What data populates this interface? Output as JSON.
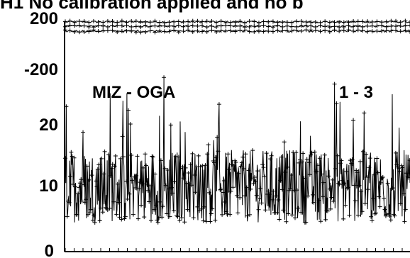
{
  "chart_data": [
    {
      "type": "scatter",
      "title": "H1  No calibration applied and no b",
      "xlabel": "",
      "ylabel": "",
      "ylim": [
        -200,
        200
      ],
      "y_ticks": [
        "200",
        "-200"
      ],
      "x_ticks_visible": false,
      "grid": false,
      "marker": "plus",
      "line_connected": true,
      "series": [
        {
          "band": "upper",
          "level": 195,
          "spread": 8
        },
        {
          "band": "middle",
          "level": 160,
          "spread": 8
        },
        {
          "band": "lower",
          "level": 120,
          "spread": 10
        }
      ]
    },
    {
      "type": "line",
      "title": "",
      "xlabel": "",
      "ylabel": "",
      "ylim": [
        0,
        25
      ],
      "y_ticks": [
        "20",
        "10",
        "0"
      ],
      "grid": false,
      "marker": "plus",
      "annotations": [
        "MIZ - OGA",
        "1 - 3"
      ],
      "series": [
        {
          "description_level_mean": 9,
          "min": 1,
          "max": 24
        }
      ]
    }
  ],
  "colors": {
    "line": "#000000",
    "background": "#ffffff"
  }
}
